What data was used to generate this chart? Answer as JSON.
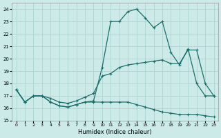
{
  "xlabel": "Humidex (Indice chaleur)",
  "bg_color": "#cceae8",
  "grid_color": "#aad4d2",
  "line_color": "#1a6e6a",
  "xlim": [
    -0.5,
    23.5
  ],
  "ylim": [
    15,
    24.5
  ],
  "xticks": [
    0,
    1,
    2,
    3,
    4,
    5,
    6,
    7,
    8,
    9,
    10,
    11,
    12,
    13,
    14,
    15,
    16,
    17,
    18,
    19,
    20,
    21,
    22,
    23
  ],
  "yticks": [
    15,
    16,
    17,
    18,
    19,
    20,
    21,
    22,
    23,
    24
  ],
  "line1_x": [
    0,
    1,
    2,
    3,
    4,
    5,
    6,
    7,
    8,
    9,
    10,
    11,
    12,
    13,
    14,
    15,
    16,
    17,
    18,
    19,
    20,
    21,
    22,
    23
  ],
  "line1_y": [
    17.5,
    16.5,
    17.0,
    17.0,
    16.5,
    16.2,
    16.1,
    16.3,
    16.5,
    16.6,
    19.3,
    23.0,
    23.0,
    23.8,
    24.0,
    23.3,
    22.5,
    23.0,
    20.5,
    19.5,
    20.8,
    18.0,
    17.0,
    17.0
  ],
  "line2_x": [
    0,
    1,
    2,
    3,
    4,
    5,
    6,
    7,
    8,
    9,
    10,
    11,
    12,
    13,
    14,
    15,
    16,
    17,
    18,
    19,
    20,
    21,
    22,
    23
  ],
  "line2_y": [
    17.5,
    16.5,
    17.0,
    17.0,
    16.8,
    16.5,
    16.4,
    16.6,
    16.9,
    17.2,
    18.6,
    18.8,
    19.3,
    19.5,
    19.6,
    19.7,
    19.8,
    19.9,
    19.6,
    19.6,
    20.7,
    20.7,
    18.0,
    17.0
  ],
  "line3_x": [
    0,
    1,
    2,
    3,
    4,
    5,
    6,
    7,
    8,
    9,
    10,
    11,
    12,
    13,
    14,
    15,
    16,
    17,
    18,
    19,
    20,
    21,
    22,
    23
  ],
  "line3_y": [
    17.5,
    16.5,
    17.0,
    17.0,
    16.5,
    16.2,
    16.1,
    16.3,
    16.5,
    16.5,
    16.5,
    16.5,
    16.5,
    16.5,
    16.3,
    16.1,
    15.9,
    15.7,
    15.6,
    15.5,
    15.5,
    15.5,
    15.4,
    15.3
  ]
}
